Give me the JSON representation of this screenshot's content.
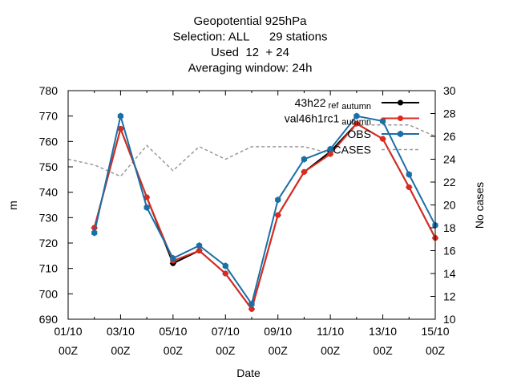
{
  "chart_data": {
    "type": "line",
    "title_lines": [
      "Geopotential 925hPa",
      "Selection: ALL      29 stations",
      "Used  12  + 24",
      "Averaging window: 24h"
    ],
    "xlabel": "Date",
    "ylabel": "m",
    "y2label": "No cases",
    "ylim": [
      690,
      780
    ],
    "y2lim": [
      10,
      30
    ],
    "xlim": [
      0,
      14
    ],
    "x_ticks": [
      0,
      2,
      4,
      6,
      8,
      10,
      12,
      14
    ],
    "x_tick_labels": [
      [
        "01/10",
        "00Z"
      ],
      [
        "03/10",
        "00Z"
      ],
      [
        "05/10",
        "00Z"
      ],
      [
        "07/10",
        "00Z"
      ],
      [
        "09/10",
        "00Z"
      ],
      [
        "11/10",
        "00Z"
      ],
      [
        "13/10",
        "00Z"
      ],
      [
        "15/10",
        "00Z"
      ]
    ],
    "y_ticks": [
      690,
      700,
      710,
      720,
      730,
      740,
      750,
      760,
      770,
      780
    ],
    "y2_ticks": [
      10,
      12,
      14,
      16,
      18,
      20,
      22,
      24,
      26,
      28,
      30
    ],
    "grid": false,
    "legend_position": "top-right",
    "x": [
      1,
      2,
      3,
      4,
      5,
      6,
      7,
      8,
      9,
      10,
      11,
      12,
      13,
      14
    ],
    "series": [
      {
        "name": "43h22_refautumn",
        "legend_main": "43h22",
        "legend_sub1": "ref",
        "legend_sub2": "autumn",
        "color": "#000000",
        "values": [
          726,
          765,
          738,
          712,
          717,
          708,
          694,
          731,
          748,
          756,
          767,
          761,
          742,
          722
        ]
      },
      {
        "name": "val46h1rc1_autumn",
        "legend_main": "val46h1rc1",
        "legend_sub1": "",
        "legend_sub2": "autumn",
        "color": "#dd2a1f",
        "values": [
          726,
          765,
          738,
          713,
          717,
          708,
          694,
          731,
          748,
          755,
          767,
          761,
          742,
          722
        ]
      },
      {
        "name": "OBS",
        "legend_main": "OBS",
        "legend_sub1": "",
        "legend_sub2": "",
        "color": "#1a6fa6",
        "values": [
          724,
          770,
          734,
          714,
          719,
          711,
          696,
          737,
          753,
          757,
          770,
          768,
          747,
          727
        ]
      }
    ],
    "cases_series": {
      "name": "CASES",
      "color": "#999999",
      "x": [
        0,
        1,
        2,
        3,
        4,
        5,
        6,
        7,
        8,
        9,
        10,
        11,
        12,
        13,
        14
      ],
      "values": [
        24,
        23.5,
        22.5,
        25.2,
        23,
        25.1,
        24,
        25.1,
        25.1,
        25.1,
        24.5,
        27,
        27,
        27,
        26
      ]
    }
  }
}
